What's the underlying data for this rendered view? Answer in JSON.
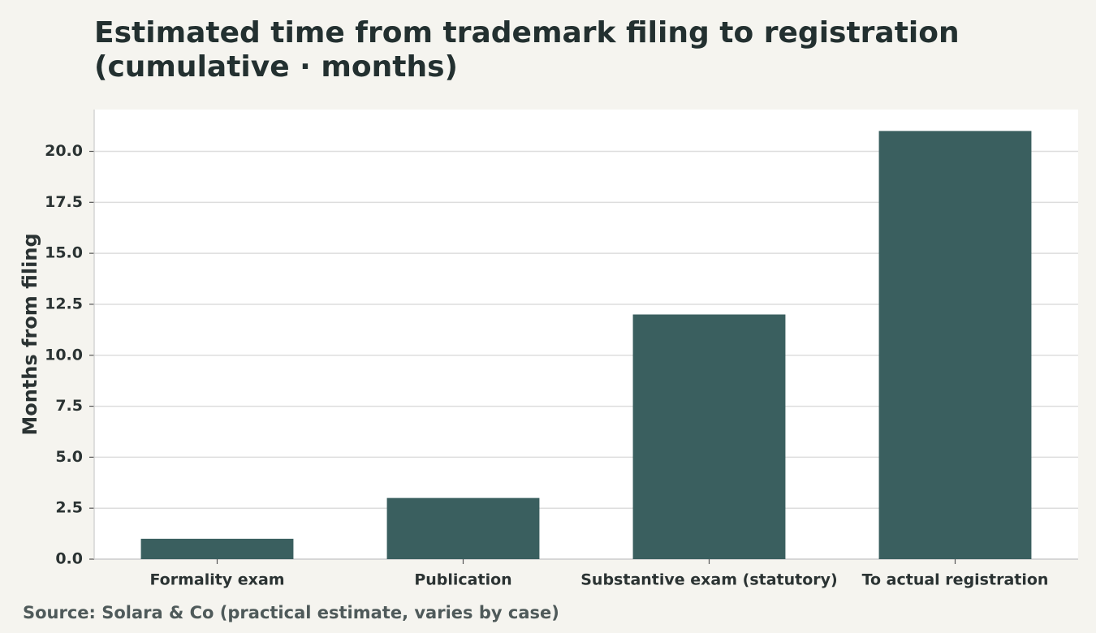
{
  "chart_data": {
    "type": "bar",
    "title": [
      "Estimated time from trademark filing to registration",
      "(cumulative · months)"
    ],
    "y_label": "Months from filing",
    "source": "Source: Solara & Co (practical estimate, varies by case)",
    "categories": [
      "Formality exam",
      "Publication",
      "Substantive exam (statutory)",
      "To actual registration"
    ],
    "values": [
      1,
      3,
      12,
      21
    ],
    "color": "#3a5f5f",
    "ylim": [
      0,
      22.05
    ],
    "yticks": [
      {
        "value": 0,
        "label": "0.0"
      },
      {
        "value": 2.5,
        "label": "2.5"
      },
      {
        "value": 5,
        "label": "5.0"
      },
      {
        "value": 7.5,
        "label": "7.5"
      },
      {
        "value": 10,
        "label": "10.0"
      },
      {
        "value": 12.5,
        "label": "12.5"
      },
      {
        "value": 15,
        "label": "15.0"
      },
      {
        "value": 17.5,
        "label": "17.5"
      },
      {
        "value": 20,
        "label": "20.0"
      }
    ],
    "grid": true
  }
}
